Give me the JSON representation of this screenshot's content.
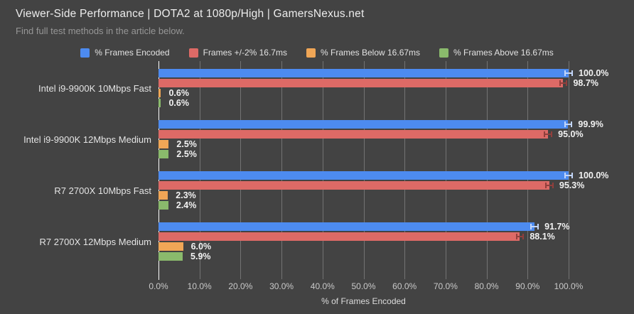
{
  "header": {
    "title": "Viewer-Side Performance | DOTA2 at 1080p/High | GamersNexus.net",
    "subtitle": "Find full test methods in the article below."
  },
  "chart_data": {
    "type": "bar",
    "orientation": "horizontal",
    "title": "Viewer-Side Performance | DOTA2 at 1080p/High | GamersNexus.net",
    "subtitle": "Find full test methods in the article below.",
    "xlabel": "% of Frames Encoded",
    "xlim": [
      0,
      100
    ],
    "x_ticks": [
      "0.0%",
      "10.0%",
      "20.0%",
      "30.0%",
      "40.0%",
      "50.0%",
      "60.0%",
      "70.0%",
      "80.0%",
      "90.0%",
      "100.0%"
    ],
    "grid": true,
    "legend_position": "top",
    "categories": [
      "Intel i9-9900K 10Mbps Fast",
      "Intel i9-9900K 12Mbps Medium",
      "R7 2700X 10Mbps Fast",
      "R7 2700X 12Mbps Medium"
    ],
    "series": [
      {
        "name": "% Frames Encoded",
        "color": "#4d8bf0",
        "values": [
          100.0,
          99.9,
          100.0,
          91.7
        ],
        "value_labels": [
          "100.0%",
          "99.9%",
          "100.0%",
          "91.7%"
        ],
        "error_bars": true,
        "error_color": "#c3d6fa",
        "error_extent_pct": 1.0
      },
      {
        "name": "Frames +/-2% 16.7ms",
        "color": "#dd6a66",
        "values": [
          98.7,
          95.0,
          95.3,
          88.1
        ],
        "value_labels": [
          "98.7%",
          "95.0%",
          "95.3%",
          "88.1%"
        ],
        "error_bars": true,
        "error_color": "#913f3c",
        "error_extent_pct": 1.0
      },
      {
        "name": "% Frames Below 16.67ms",
        "color": "#f0a656",
        "values": [
          0.6,
          2.5,
          2.3,
          6.0
        ],
        "value_labels": [
          "0.6%",
          "2.5%",
          "2.3%",
          "6.0%"
        ],
        "error_bars": false
      },
      {
        "name": "% Frames Above 16.67ms",
        "color": "#8aba6c",
        "values": [
          0.6,
          2.5,
          2.4,
          5.9
        ],
        "value_labels": [
          "0.6%",
          "2.5%",
          "2.4%",
          "5.9%"
        ],
        "error_bars": false
      }
    ]
  },
  "style": {
    "background": "#434343",
    "gridline_color": "#737373",
    "axis_line_color": "#ffffff",
    "value_label_color": "#f2f2f2",
    "tick_label_color": "#c9c9c9"
  }
}
